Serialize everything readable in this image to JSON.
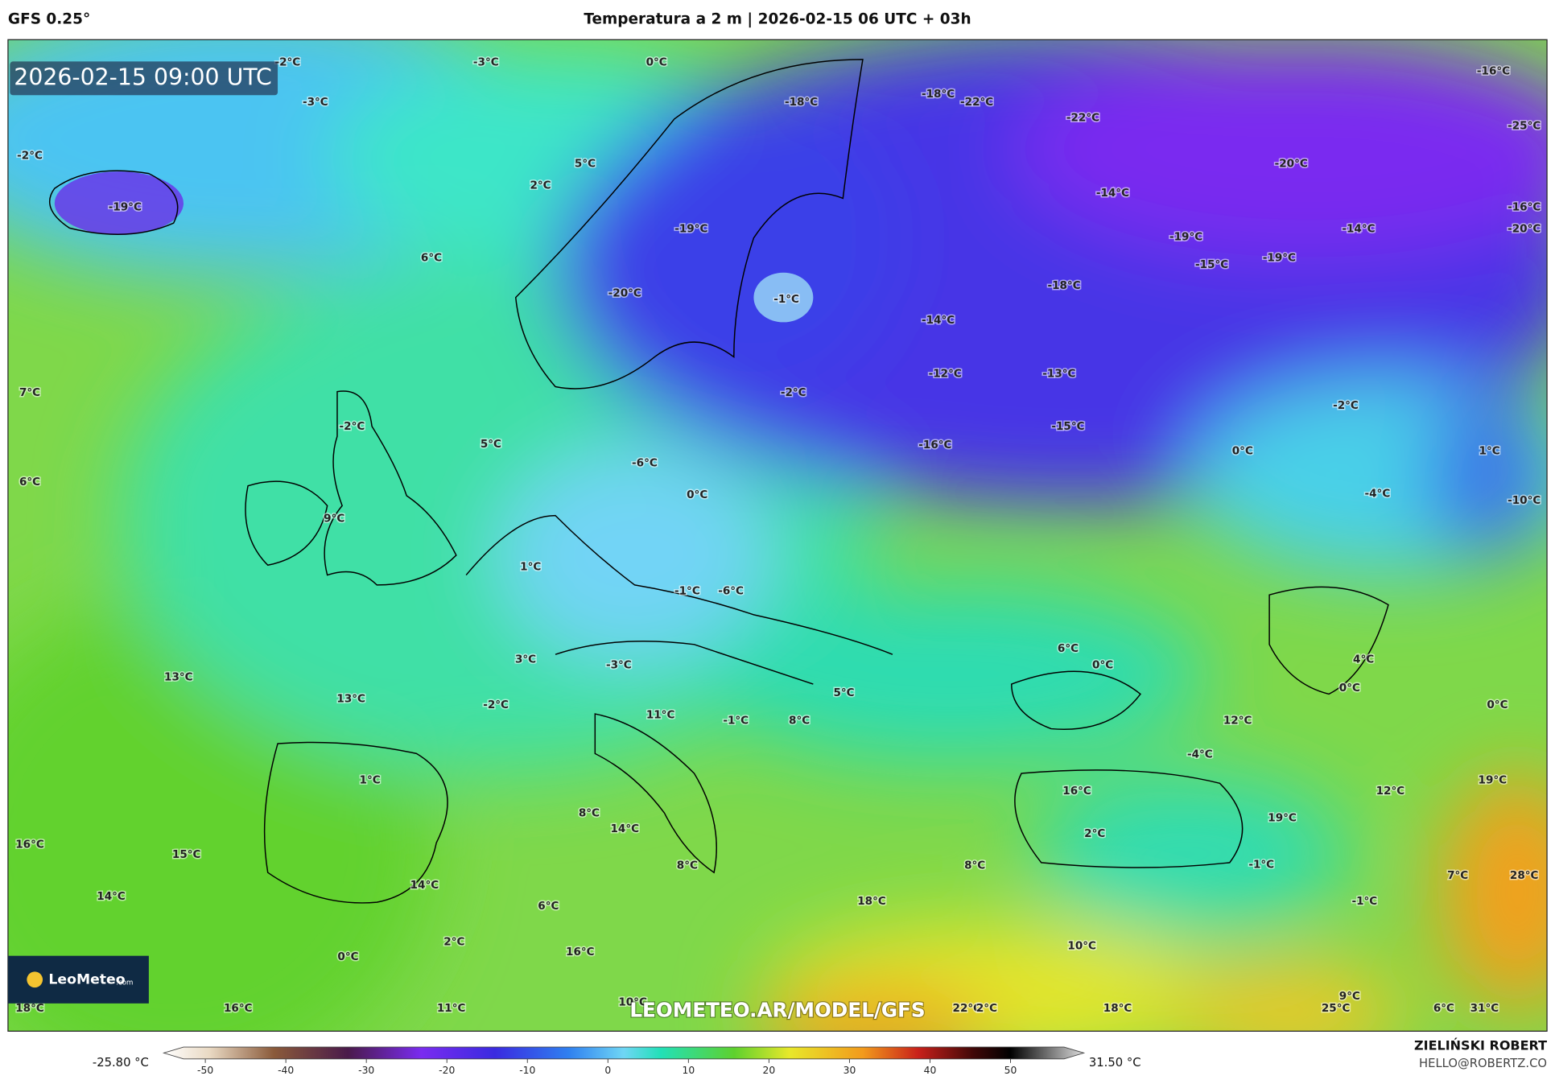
{
  "header": {
    "model": "GFS 0.25°",
    "title": "Temperatura a 2 m | 2026-02-15 06 UTC + 03h"
  },
  "map": {
    "timestamp": "2026-02-15 09:00 UTC",
    "watermark": "LEOMETEO.AR/MODEL/GFS",
    "labels": [
      "-2°C",
      "-3°C",
      "0°C",
      "-3°C",
      "-18°C",
      "-18°C",
      "-22°C",
      "-22°C",
      "-16°C",
      "-25°C",
      "-2°C",
      "5°C",
      "2°C",
      "-19°C",
      "-14°C",
      "-20°C",
      "-16°C",
      "-20°C",
      "-19°C",
      "-14°C",
      "-19°C",
      "-19°C",
      "-15°C",
      "6°C",
      "-20°C",
      "-1°C",
      "-18°C",
      "-14°C",
      "7°C",
      "-2°C",
      "-12°C",
      "-13°C",
      "-2°C",
      "-2°C",
      "-15°C",
      "5°C",
      "-16°C",
      "0°C",
      "1°C",
      "6°C",
      "-6°C",
      "0°C",
      "-4°C",
      "-10°C",
      "9°C",
      "1°C",
      "-1°C",
      "-6°C",
      "6°C",
      "0°C",
      "4°C",
      "3°C",
      "-3°C",
      "13°C",
      "0°C",
      "13°C",
      "5°C",
      "-2°C",
      "0°C",
      "11°C",
      "-1°C",
      "8°C",
      "12°C",
      "-4°C",
      "1°C",
      "16°C",
      "19°C",
      "12°C",
      "19°C",
      "8°C",
      "14°C",
      "2°C",
      "16°C",
      "15°C",
      "8°C",
      "8°C",
      "-1°C",
      "7°C",
      "28°C",
      "14°C",
      "14°C",
      "18°C",
      "-1°C",
      "6°C",
      "2°C",
      "10°C",
      "0°C",
      "16°C",
      "9°C",
      "18°C",
      "16°C",
      "11°C",
      "10°C",
      "22°C",
      "2°C",
      "18°C",
      "25°C",
      "6°C",
      "31°C"
    ]
  },
  "logo": {
    "name": "LeoMeteo",
    "suffix": ".com"
  },
  "colorbar": {
    "min_label": "-25.80 °C",
    "max_label": "31.50 °C",
    "ticks": [
      -50,
      -40,
      -30,
      -20,
      -10,
      0,
      10,
      20,
      30,
      40,
      50
    ]
  },
  "credits": {
    "author": "ZIELIŃSKI ROBERT",
    "email": "HELLO@ROBERTZ.CO"
  }
}
